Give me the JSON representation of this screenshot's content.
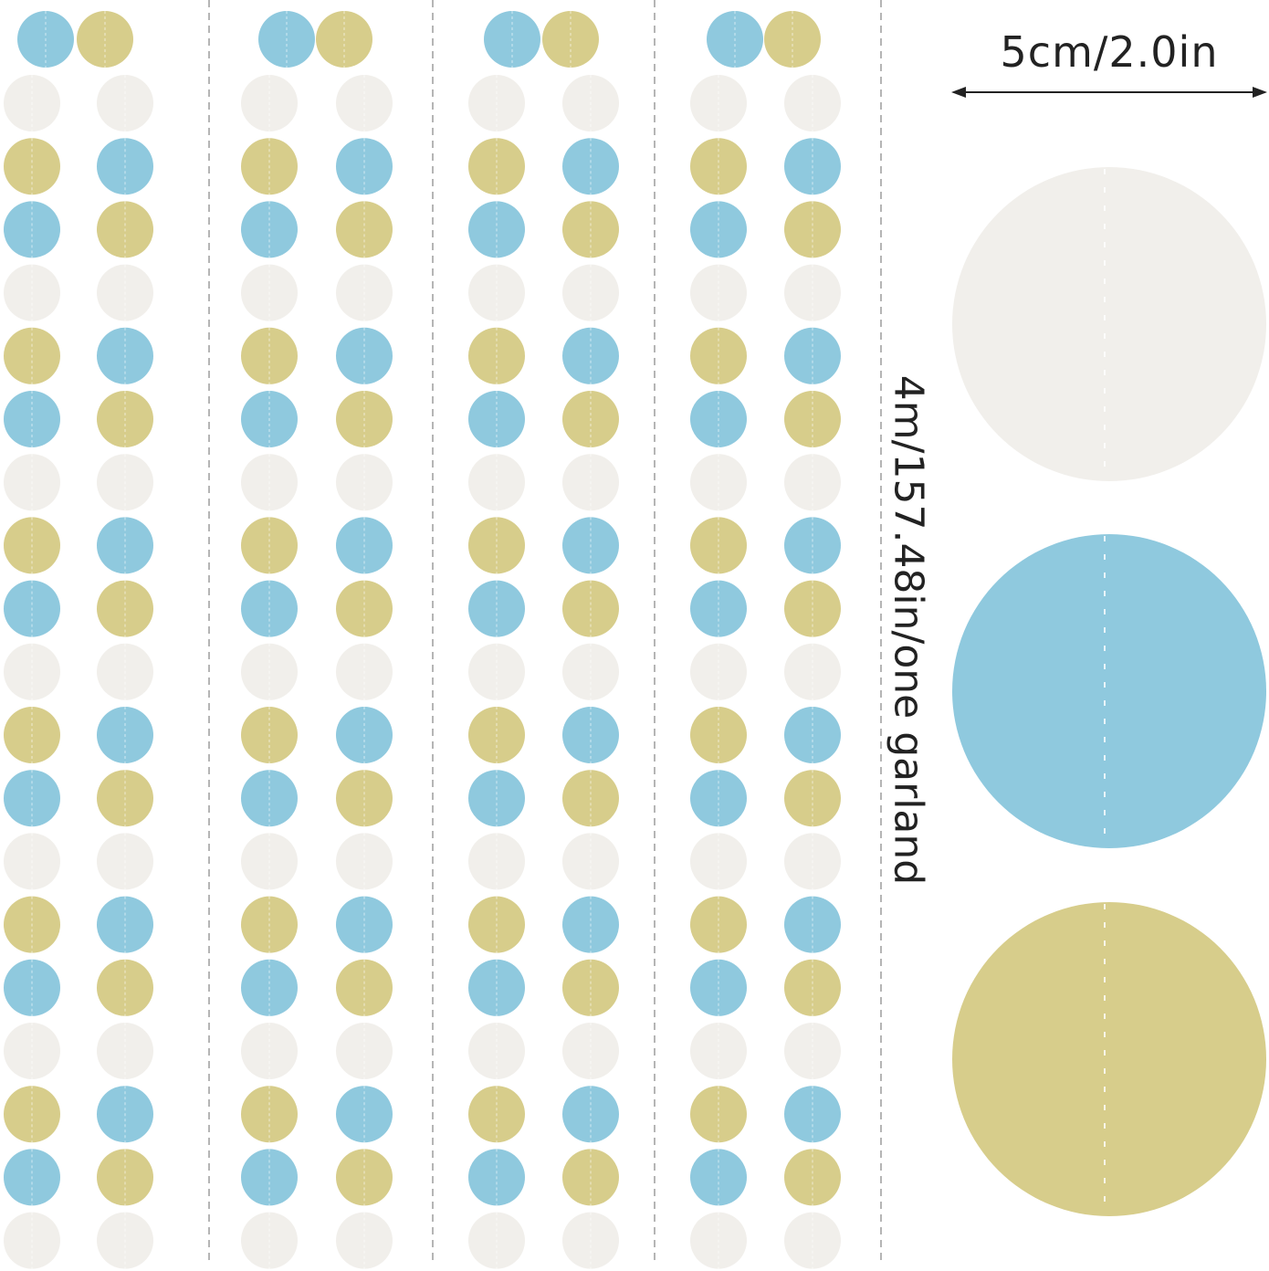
{
  "labels": {
    "width": "5cm/2.0in",
    "length": "4m/157.48in/one garland"
  },
  "colors": {
    "blue": "#8fc9de",
    "gold": "#d7cd8b",
    "white": "#f1efeb",
    "divider": "#b5b5b5"
  },
  "garland": {
    "strand_count": 4,
    "left_pattern": [
      "white",
      "gold",
      "blue"
    ],
    "right_pattern": [
      "white",
      "blue",
      "gold"
    ],
    "top_pair": [
      "blue",
      "gold"
    ]
  }
}
